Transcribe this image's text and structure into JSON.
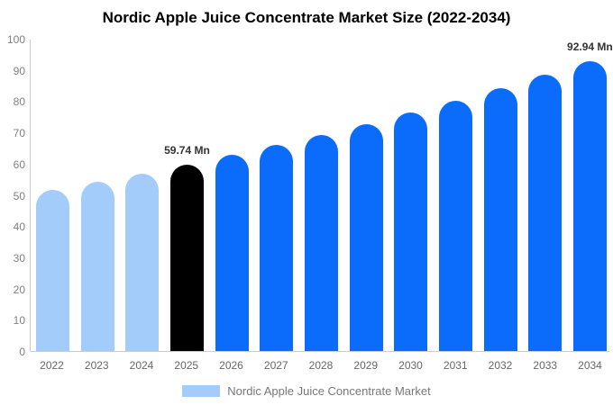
{
  "title": "Nordic Apple Juice Concentrate Market Size (2022-2034)",
  "legend": {
    "label": "Nordic Apple Juice Concentrate Market",
    "swatch_color": "#a4ccfa"
  },
  "colors": {
    "historical_bar": "#a4ccfa",
    "base_year_bar": "#000000",
    "forecast_bar": "#0b6cfb",
    "axis_line": "#cccccc",
    "y_tick_text": "#808080",
    "x_tick_text": "#666666",
    "legend_text": "#777777",
    "data_label_text": "#333333",
    "title_text": "#000000",
    "background": "#ffffff"
  },
  "chart_data": {
    "type": "bar",
    "title": "Nordic Apple Juice Concentrate Market Size (2022-2034)",
    "categories": [
      "2022",
      "2023",
      "2024",
      "2025",
      "2026",
      "2027",
      "2028",
      "2029",
      "2030",
      "2031",
      "2032",
      "2033",
      "2034"
    ],
    "values": [
      51.6,
      54.2,
      56.9,
      59.74,
      62.75,
      65.9,
      69.2,
      72.7,
      76.4,
      80.2,
      84.2,
      88.5,
      92.94
    ],
    "bar_colors": [
      "#a4ccfa",
      "#a4ccfa",
      "#a4ccfa",
      "#000000",
      "#0b6cfb",
      "#0b6cfb",
      "#0b6cfb",
      "#0b6cfb",
      "#0b6cfb",
      "#0b6cfb",
      "#0b6cfb",
      "#0b6cfb",
      "#0b6cfb"
    ],
    "xlabel": "",
    "ylabel": "",
    "ylim": [
      0,
      100
    ],
    "ytick_step": 10,
    "grid": false,
    "legend_position": "bottom",
    "legend_entries": [
      "Nordic Apple Juice Concentrate Market"
    ],
    "data_labels": [
      {
        "category": "2025",
        "text": "59.74 Mn"
      },
      {
        "category": "2034",
        "text": "92.94 Mn"
      }
    ]
  }
}
